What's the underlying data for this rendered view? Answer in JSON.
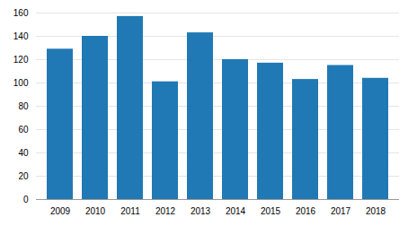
{
  "chart_data": {
    "type": "bar",
    "categories": [
      "2009",
      "2010",
      "2011",
      "2012",
      "2013",
      "2014",
      "2015",
      "2016",
      "2017",
      "2018"
    ],
    "values": [
      129,
      140,
      157,
      101,
      143,
      120,
      117,
      103,
      115,
      104
    ],
    "color": "#2079b4",
    "ylim": [
      0,
      160
    ],
    "yticks": [
      0,
      20,
      40,
      60,
      80,
      100,
      120,
      140,
      160
    ],
    "grid": true
  }
}
